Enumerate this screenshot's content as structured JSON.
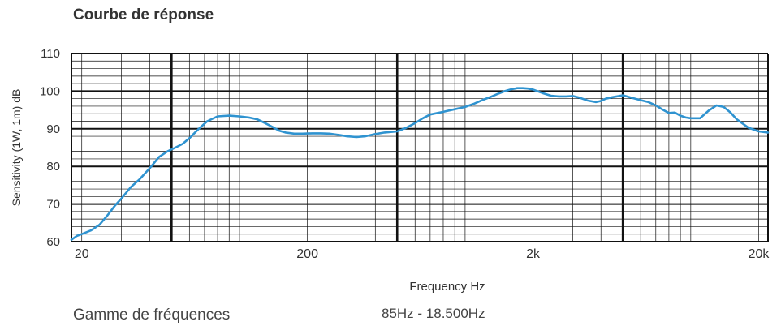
{
  "header": {
    "title": "Courbe de réponse"
  },
  "footer": {
    "range_label": "Gamme de fréquences",
    "range_value": "85Hz - 18.500Hz"
  },
  "chart_data": {
    "type": "line",
    "xscale": "log",
    "xlim": [
      18,
      22000
    ],
    "ylim": [
      60,
      110
    ],
    "xlabel": "Frequency Hz",
    "ylabel": "Sensitivity (1W, 1m) dB",
    "grid": true,
    "line_color": "#2f93d0",
    "xticks": [
      {
        "value": 20,
        "label": "20"
      },
      {
        "value": 200,
        "label": "200"
      },
      {
        "value": 2000,
        "label": "2k"
      },
      {
        "value": 20000,
        "label": "20k"
      }
    ],
    "yticks": [
      60,
      70,
      80,
      90,
      100,
      110
    ],
    "series": [
      {
        "x": [
          18,
          19,
          20,
          22,
          24,
          26,
          28,
          30,
          33,
          36,
          40,
          44,
          48,
          52,
          56,
          60,
          66,
          72,
          80,
          90,
          100,
          110,
          120,
          130,
          140,
          150,
          160,
          175,
          190,
          210,
          230,
          250,
          280,
          300,
          330,
          360,
          400,
          440,
          480,
          500,
          550,
          600,
          650,
          700,
          800,
          900,
          1000,
          1100,
          1200,
          1300,
          1400,
          1500,
          1600,
          1700,
          1800,
          1900,
          2000,
          2200,
          2400,
          2600,
          2800,
          3000,
          3200,
          3500,
          3800,
          4000,
          4200,
          4500,
          5000,
          5500,
          6000,
          6500,
          7000,
          7500,
          8000,
          8500,
          9000,
          9500,
          10000,
          11000,
          12000,
          13000,
          14000,
          15000,
          16000,
          18000,
          20000,
          22000
        ],
        "y": [
          60.5,
          61.5,
          62,
          63,
          64.5,
          67,
          69.5,
          71.5,
          74.5,
          76.5,
          79.5,
          82.5,
          84,
          85,
          86,
          87.5,
          90,
          92,
          93.3,
          93.5,
          93.3,
          93,
          92.5,
          91.5,
          90.5,
          89.5,
          89,
          88.7,
          88.7,
          88.8,
          88.8,
          88.7,
          88.3,
          88,
          87.8,
          88,
          88.6,
          89,
          89.2,
          89.3,
          90.3,
          91.5,
          92.8,
          93.8,
          94.5,
          95.2,
          95.8,
          96.7,
          97.7,
          98.5,
          99.3,
          100,
          100.5,
          100.8,
          100.8,
          100.7,
          100.4,
          99.5,
          98.8,
          98.6,
          98.6,
          98.7,
          98.3,
          97.5,
          97.1,
          97.4,
          98,
          98.4,
          98.9,
          98.2,
          97.6,
          97.1,
          96.2,
          95.1,
          94.2,
          94.3,
          93.5,
          93,
          92.8,
          92.8,
          94.8,
          96.2,
          95.8,
          94.3,
          92.5,
          90.3,
          89.3,
          89
        ]
      }
    ]
  }
}
